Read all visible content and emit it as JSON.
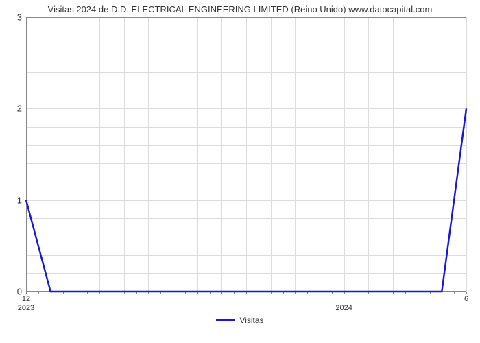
{
  "chart": {
    "type": "line",
    "title": "Visitas 2024 de D.D. ELECTRICAL ENGINEERING LIMITED (Reino Unido) www.datocapital.com",
    "title_fontsize": 13,
    "title_color": "#333333",
    "background_color": "#ffffff",
    "grid_color": "#dcdcdc",
    "axis_color": "#888888",
    "y": {
      "min": 0,
      "max": 3,
      "ticks": [
        0,
        1,
        2,
        3
      ],
      "minor_step": 0.2,
      "label_fontsize": 13,
      "label_color": "#333333"
    },
    "x": {
      "n_points": 19,
      "major_labels_top": [
        {
          "idx": 0,
          "text": "12"
        },
        {
          "idx": 18,
          "text": "6"
        }
      ],
      "major_labels_bottom": [
        {
          "idx": 0,
          "text": "2023"
        },
        {
          "idx": 13,
          "text": "2024"
        }
      ],
      "minor_tick_step": 0.5,
      "label_fontsize": 11,
      "label_color": "#333333"
    },
    "series": {
      "name": "Visitas",
      "color": "#1818d6",
      "line_width": 2.5,
      "values": [
        1,
        0,
        0,
        0,
        0,
        0,
        0,
        0,
        0,
        0,
        0,
        0,
        0,
        0,
        0,
        0,
        0,
        0,
        2
      ]
    },
    "legend": {
      "label": "Visitas",
      "swatch_color": "#1818d6",
      "fontsize": 12,
      "text_color": "#333333"
    }
  }
}
